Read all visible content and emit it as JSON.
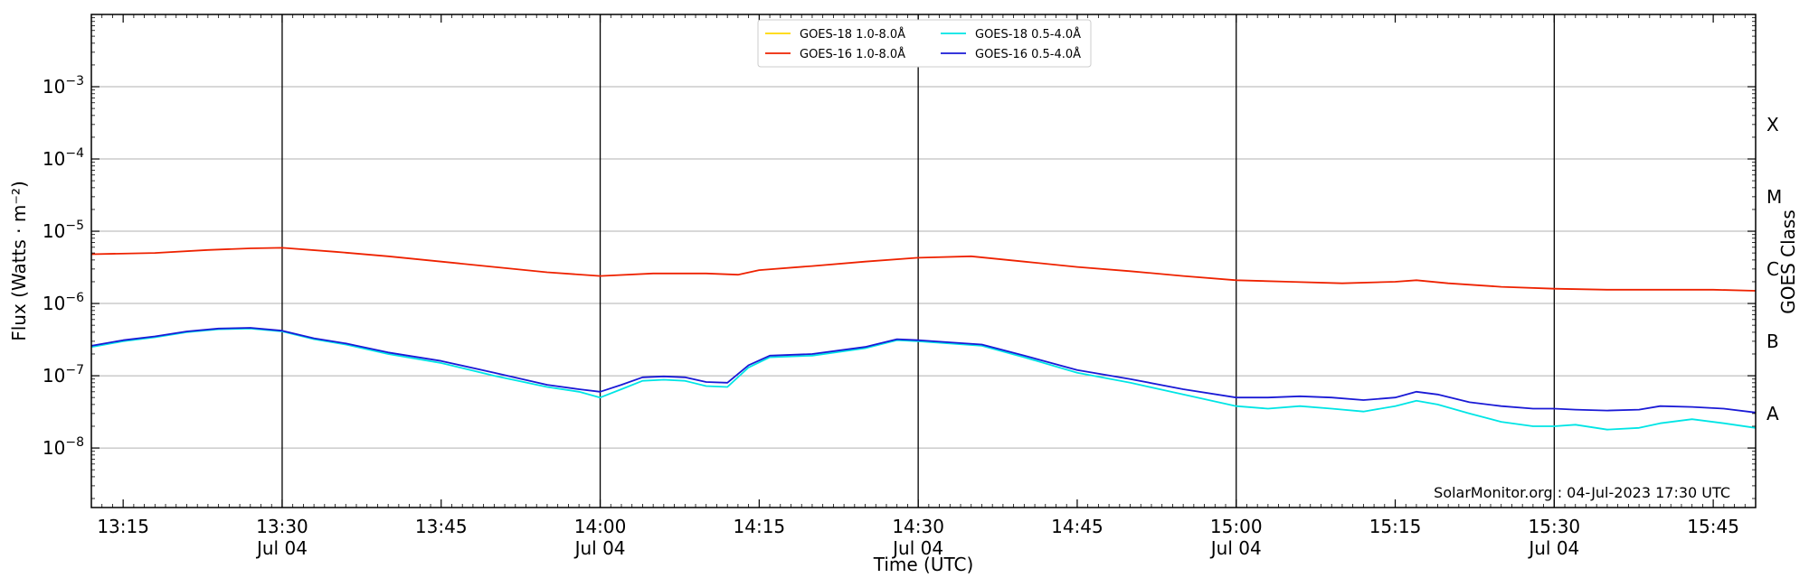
{
  "chart_data": {
    "type": "line",
    "xlabel": "Time (UTC)",
    "ylabel": "Flux (Watts · m⁻²)",
    "y2label": "GOES Class",
    "yscale": "log",
    "ylim": [
      1.5e-09,
      0.01
    ],
    "xlim": [
      "13:12",
      "15:49"
    ],
    "y_ticks": [
      {
        "value": 1e-08,
        "base": "10",
        "exp": "−8"
      },
      {
        "value": 1e-07,
        "base": "10",
        "exp": "−7"
      },
      {
        "value": 1e-06,
        "base": "10",
        "exp": "−6"
      },
      {
        "value": 1e-05,
        "base": "10",
        "exp": "−5"
      },
      {
        "value": 0.0001,
        "base": "10",
        "exp": "−4"
      },
      {
        "value": 0.001,
        "base": "10",
        "exp": "−3"
      }
    ],
    "class_labels": [
      {
        "label": "A",
        "value": 3e-08
      },
      {
        "label": "B",
        "value": 3e-07
      },
      {
        "label": "C",
        "value": 3e-06
      },
      {
        "label": "M",
        "value": 3e-05
      },
      {
        "label": "X",
        "value": 0.0003
      }
    ],
    "x_ticks": [
      {
        "time": "13:15",
        "label": "13:15",
        "date": ""
      },
      {
        "time": "13:30",
        "label": "13:30",
        "date": "Jul 04"
      },
      {
        "time": "13:45",
        "label": "13:45",
        "date": ""
      },
      {
        "time": "14:00",
        "label": "14:00",
        "date": "Jul 04"
      },
      {
        "time": "14:15",
        "label": "14:15",
        "date": ""
      },
      {
        "time": "14:30",
        "label": "14:30",
        "date": "Jul 04"
      },
      {
        "time": "14:45",
        "label": "14:45",
        "date": ""
      },
      {
        "time": "15:00",
        "label": "15:00",
        "date": "Jul 04"
      },
      {
        "time": "15:15",
        "label": "15:15",
        "date": ""
      },
      {
        "time": "15:30",
        "label": "15:30",
        "date": "Jul 04"
      },
      {
        "time": "15:45",
        "label": "15:45",
        "date": ""
      }
    ],
    "vlines": [
      "13:30",
      "14:00",
      "14:30",
      "15:00",
      "15:30"
    ],
    "grid": "horizontal at decades",
    "legend_position": "top-center",
    "annotation": "SolarMonitor.org : 04-Jul-2023 17:30 UTC",
    "series": [
      {
        "name": "GOES-18 1.0-8.0Å",
        "color": "#ffd700",
        "x": [],
        "y": []
      },
      {
        "name": "GOES-16 1.0-8.0Å",
        "color": "#ee2200",
        "x": [
          "13:12",
          "13:18",
          "13:23",
          "13:27",
          "13:30",
          "13:35",
          "13:40",
          "13:45",
          "13:50",
          "13:55",
          "14:00",
          "14:05",
          "14:10",
          "14:13",
          "14:15",
          "14:20",
          "14:25",
          "14:30",
          "14:35",
          "14:40",
          "14:45",
          "14:50",
          "14:55",
          "15:00",
          "15:05",
          "15:10",
          "15:15",
          "15:17",
          "15:20",
          "15:25",
          "15:30",
          "15:35",
          "15:40",
          "15:45",
          "15:49"
        ],
        "y": [
          4.8e-06,
          5e-06,
          5.5e-06,
          5.8e-06,
          5.9e-06,
          5.2e-06,
          4.5e-06,
          3.8e-06,
          3.2e-06,
          2.7e-06,
          2.4e-06,
          2.6e-06,
          2.6e-06,
          2.5e-06,
          2.9e-06,
          3.3e-06,
          3.8e-06,
          4.3e-06,
          4.5e-06,
          3.8e-06,
          3.2e-06,
          2.8e-06,
          2.4e-06,
          2.1e-06,
          2e-06,
          1.9e-06,
          2e-06,
          2.1e-06,
          1.9e-06,
          1.7e-06,
          1.6e-06,
          1.55e-06,
          1.55e-06,
          1.55e-06,
          1.5e-06
        ]
      },
      {
        "name": "GOES-18 0.5-4.0Å",
        "color": "#00e5e5",
        "x": [
          "13:12",
          "13:15",
          "13:18",
          "13:21",
          "13:24",
          "13:27",
          "13:30",
          "13:33",
          "13:36",
          "13:40",
          "13:45",
          "13:50",
          "13:55",
          "13:58",
          "14:00",
          "14:02",
          "14:04",
          "14:06",
          "14:08",
          "14:10",
          "14:12",
          "14:14",
          "14:16",
          "14:20",
          "14:25",
          "14:28",
          "14:30",
          "14:33",
          "14:36",
          "14:40",
          "14:45",
          "14:50",
          "14:55",
          "15:00",
          "15:03",
          "15:06",
          "15:09",
          "15:12",
          "15:15",
          "15:17",
          "15:19",
          "15:22",
          "15:25",
          "15:28",
          "15:30",
          "15:32",
          "15:35",
          "15:38",
          "15:40",
          "15:43",
          "15:46",
          "15:49"
        ],
        "y": [
          2.5e-07,
          3e-07,
          3.4e-07,
          4e-07,
          4.4e-07,
          4.5e-07,
          4.1e-07,
          3.2e-07,
          2.7e-07,
          2e-07,
          1.5e-07,
          1e-07,
          7e-08,
          6e-08,
          5e-08,
          6.5e-08,
          8.5e-08,
          8.8e-08,
          8.5e-08,
          7.2e-08,
          7e-08,
          1.3e-07,
          1.8e-07,
          1.9e-07,
          2.4e-07,
          3.1e-07,
          3e-07,
          2.8e-07,
          2.6e-07,
          1.8e-07,
          1.1e-07,
          8e-08,
          5.5e-08,
          3.8e-08,
          3.5e-08,
          3.8e-08,
          3.5e-08,
          3.2e-08,
          3.8e-08,
          4.5e-08,
          4e-08,
          3e-08,
          2.3e-08,
          2e-08,
          2e-08,
          2.1e-08,
          1.8e-08,
          1.9e-08,
          2.2e-08,
          2.5e-08,
          2.2e-08,
          1.9e-08
        ]
      },
      {
        "name": "GOES-16 0.5-4.0Å",
        "color": "#1a1ad6",
        "x": [
          "13:12",
          "13:15",
          "13:18",
          "13:21",
          "13:24",
          "13:27",
          "13:30",
          "13:33",
          "13:36",
          "13:40",
          "13:45",
          "13:50",
          "13:55",
          "13:58",
          "14:00",
          "14:02",
          "14:04",
          "14:06",
          "14:08",
          "14:10",
          "14:12",
          "14:14",
          "14:16",
          "14:20",
          "14:25",
          "14:28",
          "14:30",
          "14:33",
          "14:36",
          "14:40",
          "14:45",
          "14:50",
          "14:55",
          "15:00",
          "15:03",
          "15:06",
          "15:09",
          "15:12",
          "15:15",
          "15:17",
          "15:19",
          "15:22",
          "15:25",
          "15:28",
          "15:30",
          "15:32",
          "15:35",
          "15:38",
          "15:40",
          "15:43",
          "15:46",
          "15:49"
        ],
        "y": [
          2.6e-07,
          3.1e-07,
          3.5e-07,
          4.1e-07,
          4.5e-07,
          4.6e-07,
          4.2e-07,
          3.3e-07,
          2.8e-07,
          2.1e-07,
          1.6e-07,
          1.1e-07,
          7.5e-08,
          6.5e-08,
          6e-08,
          7.5e-08,
          9.5e-08,
          9.8e-08,
          9.5e-08,
          8.2e-08,
          8e-08,
          1.4e-07,
          1.9e-07,
          2e-07,
          2.5e-07,
          3.2e-07,
          3.1e-07,
          2.9e-07,
          2.7e-07,
          1.9e-07,
          1.2e-07,
          9e-08,
          6.5e-08,
          5e-08,
          5e-08,
          5.2e-08,
          5e-08,
          4.6e-08,
          5e-08,
          6e-08,
          5.5e-08,
          4.3e-08,
          3.8e-08,
          3.5e-08,
          3.5e-08,
          3.4e-08,
          3.3e-08,
          3.4e-08,
          3.8e-08,
          3.7e-08,
          3.5e-08,
          3.1e-08
        ]
      }
    ]
  }
}
